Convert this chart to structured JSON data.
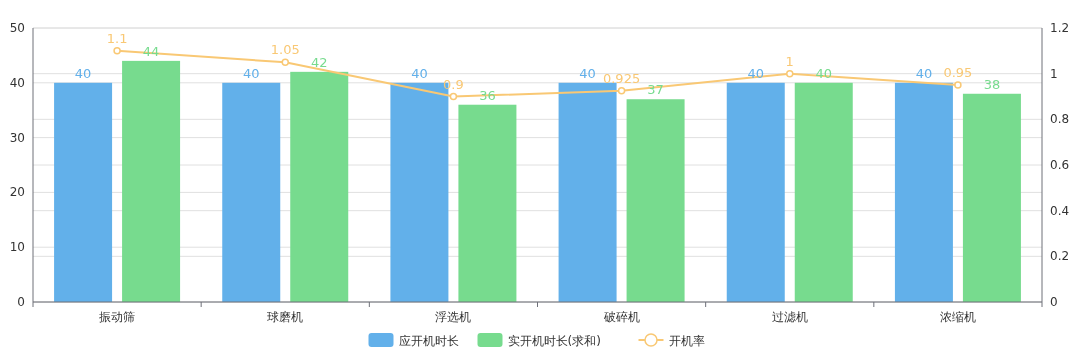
{
  "chart_data": {
    "type": "bar",
    "categories": [
      "振动筛",
      "球磨机",
      "浮选机",
      "破碎机",
      "过滤机",
      "浓缩机"
    ],
    "series": [
      {
        "name": "应开机时长",
        "color": "#62b0ea",
        "values": [
          40,
          40,
          40,
          40,
          40,
          40
        ]
      },
      {
        "name": "实开机时长(求和)",
        "color": "#77db8e",
        "values": [
          44,
          42,
          36,
          37,
          40,
          38
        ]
      },
      {
        "name": "开机率",
        "type": "line",
        "axis": "y2",
        "color": "#f9c874",
        "values": [
          1.1,
          1.05,
          0.9,
          0.925,
          1,
          0.95
        ]
      }
    ],
    "ylim": [
      0,
      50
    ],
    "yticks": [
      0,
      10,
      20,
      30,
      40,
      50
    ],
    "y2lim": [
      0,
      1.2
    ],
    "y2ticks": [
      0,
      0.2,
      0.4,
      0.6,
      0.8,
      1,
      1.2
    ],
    "grid": true,
    "legend": "bottom",
    "data_labels": true,
    "marker": "circle"
  }
}
